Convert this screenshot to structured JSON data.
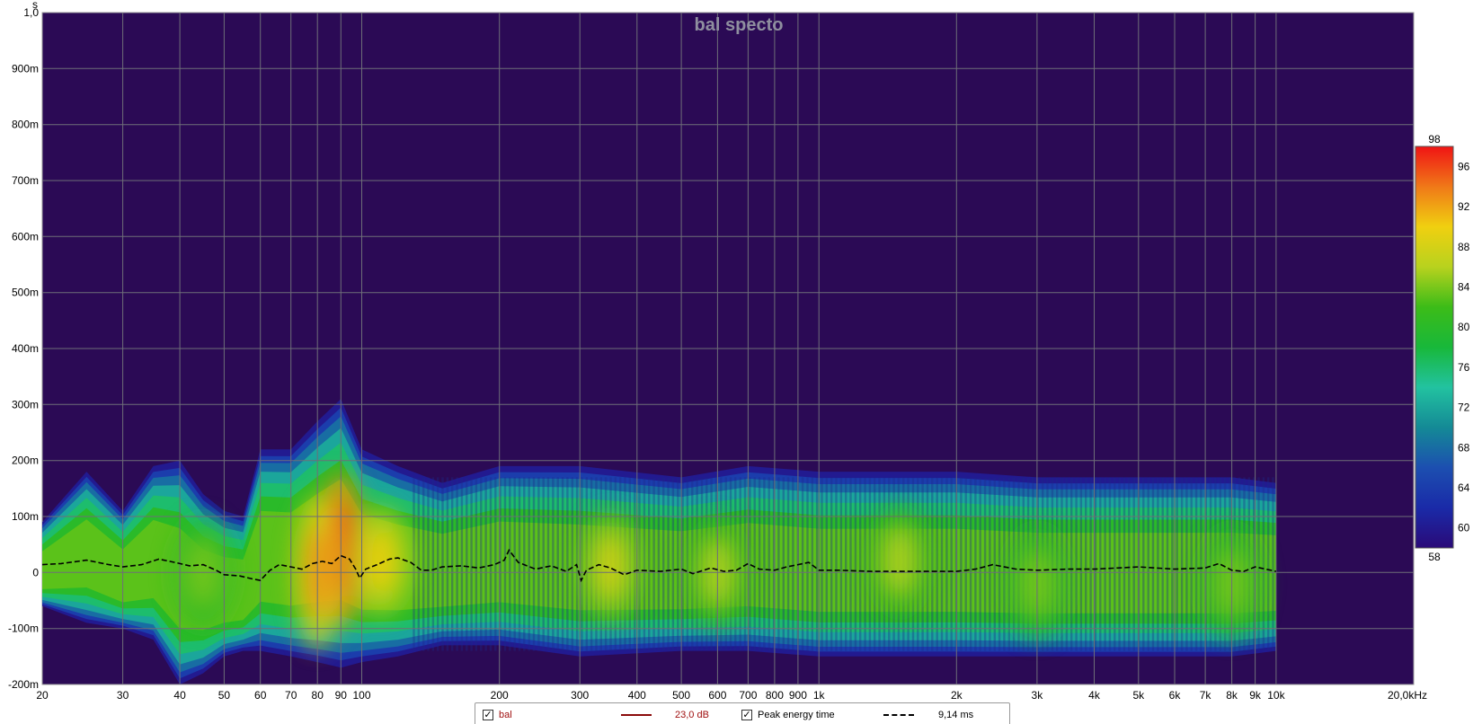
{
  "chart_data": {
    "type": "heatmap",
    "title": "bal specto",
    "x_axis": {
      "scale": "log",
      "range": [
        20,
        20000
      ],
      "tick_values": [
        20,
        30,
        40,
        50,
        60,
        70,
        80,
        90,
        100,
        200,
        300,
        400,
        500,
        600,
        700,
        800,
        900,
        1000,
        2000,
        3000,
        4000,
        5000,
        6000,
        7000,
        8000,
        9000,
        10000,
        20000
      ],
      "tick_labels": [
        "20",
        "30",
        "40",
        "50",
        "60",
        "70",
        "80",
        "90",
        "100",
        "200",
        "300",
        "400",
        "500",
        "600",
        "700",
        "800",
        "900",
        "1k",
        "2k",
        "3k",
        "4k",
        "5k",
        "6k",
        "7k",
        "8k",
        "9k",
        "10k",
        "20,0kHz"
      ]
    },
    "y_axis": {
      "unit": "s",
      "range": [
        -0.2,
        1.0
      ],
      "tick_values": [
        1.0,
        0.9,
        0.8,
        0.7,
        0.6,
        0.5,
        0.4,
        0.3,
        0.2,
        0.1,
        0,
        -0.1,
        -0.2
      ],
      "tick_labels": [
        "1,0",
        "900m",
        "800m",
        "700m",
        "600m",
        "500m",
        "400m",
        "300m",
        "200m",
        "100m",
        "0",
        "-100m",
        "-200m"
      ]
    },
    "colorbar": {
      "range": [
        58,
        98
      ],
      "tick_values": [
        98,
        96,
        92,
        88,
        84,
        80,
        76,
        72,
        68,
        64,
        60,
        58
      ],
      "tick_labels": [
        "98",
        "96",
        "92",
        "88",
        "84",
        "80",
        "76",
        "72",
        "68",
        "64",
        "60",
        "58"
      ]
    },
    "grid": true,
    "background_color": "#2b0a55",
    "spectrogram_extent": [
      [
        20,
        -0.06,
        0.09
      ],
      [
        25,
        -0.09,
        0.18
      ],
      [
        30,
        -0.1,
        0.11
      ],
      [
        35,
        -0.12,
        0.19
      ],
      [
        40,
        -0.2,
        0.2
      ],
      [
        45,
        -0.18,
        0.14
      ],
      [
        50,
        -0.15,
        0.11
      ],
      [
        55,
        -0.14,
        0.1
      ],
      [
        60,
        -0.14,
        0.22
      ],
      [
        70,
        -0.15,
        0.22
      ],
      [
        80,
        -0.16,
        0.27
      ],
      [
        90,
        -0.17,
        0.31
      ],
      [
        100,
        -0.16,
        0.22
      ],
      [
        120,
        -0.15,
        0.19
      ],
      [
        150,
        -0.13,
        0.16
      ],
      [
        200,
        -0.13,
        0.19
      ],
      [
        300,
        -0.15,
        0.19
      ],
      [
        500,
        -0.14,
        0.17
      ],
      [
        700,
        -0.14,
        0.19
      ],
      [
        1000,
        -0.15,
        0.18
      ],
      [
        2000,
        -0.15,
        0.18
      ],
      [
        3000,
        -0.15,
        0.17
      ],
      [
        5000,
        -0.15,
        0.17
      ],
      [
        8000,
        -0.15,
        0.17
      ],
      [
        10000,
        -0.14,
        0.16
      ]
    ],
    "hotspots": [
      {
        "freq": 90,
        "time": 0.04,
        "level": 97
      },
      {
        "freq": 80,
        "time": 0.0,
        "level": 93
      },
      {
        "freq": 110,
        "time": 0.02,
        "level": 90
      },
      {
        "freq": 350,
        "time": 0.01,
        "level": 88
      },
      {
        "freq": 1500,
        "time": 0.02,
        "level": 86
      },
      {
        "freq": 600,
        "time": 0.0,
        "level": 86
      },
      {
        "freq": 45,
        "time": 0.0,
        "level": 84
      },
      {
        "freq": 3000,
        "time": -0.02,
        "level": 84
      },
      {
        "freq": 8000,
        "time": -0.02,
        "level": 84
      }
    ],
    "series": [
      {
        "name": "Peak energy time",
        "style": "dashed",
        "color": "#000000",
        "points": [
          [
            20,
            0.014
          ],
          [
            22,
            0.016
          ],
          [
            25,
            0.022
          ],
          [
            28,
            0.014
          ],
          [
            30,
            0.01
          ],
          [
            33,
            0.014
          ],
          [
            36,
            0.024
          ],
          [
            39,
            0.018
          ],
          [
            42,
            0.012
          ],
          [
            45,
            0.014
          ],
          [
            48,
            0.004
          ],
          [
            50,
            -0.004
          ],
          [
            54,
            -0.006
          ],
          [
            58,
            -0.012
          ],
          [
            60,
            -0.014
          ],
          [
            63,
            0.004
          ],
          [
            66,
            0.014
          ],
          [
            70,
            0.01
          ],
          [
            74,
            0.006
          ],
          [
            78,
            0.016
          ],
          [
            82,
            0.02
          ],
          [
            86,
            0.016
          ],
          [
            90,
            0.03
          ],
          [
            94,
            0.024
          ],
          [
            97,
            0.006
          ],
          [
            99,
            -0.01
          ],
          [
            102,
            0.006
          ],
          [
            108,
            0.014
          ],
          [
            115,
            0.024
          ],
          [
            120,
            0.026
          ],
          [
            128,
            0.018
          ],
          [
            135,
            0.004
          ],
          [
            142,
            0.004
          ],
          [
            150,
            0.01
          ],
          [
            165,
            0.012
          ],
          [
            180,
            0.008
          ],
          [
            195,
            0.014
          ],
          [
            205,
            0.022
          ],
          [
            210,
            0.04
          ],
          [
            220,
            0.018
          ],
          [
            240,
            0.006
          ],
          [
            260,
            0.012
          ],
          [
            280,
            0.002
          ],
          [
            295,
            0.014
          ],
          [
            302,
            -0.014
          ],
          [
            310,
            0.004
          ],
          [
            330,
            0.014
          ],
          [
            350,
            0.008
          ],
          [
            375,
            -0.004
          ],
          [
            400,
            0.004
          ],
          [
            450,
            0.002
          ],
          [
            500,
            0.006
          ],
          [
            530,
            -0.002
          ],
          [
            580,
            0.008
          ],
          [
            620,
            0.002
          ],
          [
            660,
            0.004
          ],
          [
            700,
            0.016
          ],
          [
            740,
            0.006
          ],
          [
            800,
            0.004
          ],
          [
            850,
            0.01
          ],
          [
            900,
            0.014
          ],
          [
            950,
            0.018
          ],
          [
            1000,
            0.004
          ],
          [
            1100,
            0.004
          ],
          [
            1300,
            0.002
          ],
          [
            1600,
            0.002
          ],
          [
            2000,
            0.002
          ],
          [
            2200,
            0.006
          ],
          [
            2400,
            0.014
          ],
          [
            2700,
            0.006
          ],
          [
            3000,
            0.004
          ],
          [
            3500,
            0.006
          ],
          [
            4000,
            0.006
          ],
          [
            4500,
            0.008
          ],
          [
            5000,
            0.01
          ],
          [
            6000,
            0.006
          ],
          [
            7000,
            0.008
          ],
          [
            7500,
            0.016
          ],
          [
            8000,
            0.004
          ],
          [
            8500,
            0.002
          ],
          [
            9000,
            0.01
          ],
          [
            10000,
            0.002
          ]
        ]
      }
    ]
  },
  "legend": {
    "entries": [
      {
        "checked": true,
        "name": "bal",
        "value": "23,0 dB",
        "color": "#a01010"
      },
      {
        "checked": true,
        "name": "Peak energy time",
        "value": "9,14 ms",
        "color": "#000000"
      }
    ]
  }
}
